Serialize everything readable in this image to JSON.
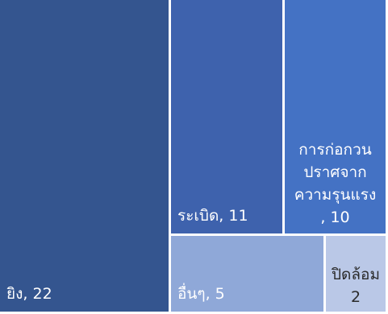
{
  "chart_data": {
    "type": "treemap",
    "title": "",
    "items": [
      {
        "name": "ยิง",
        "value": 22,
        "label_lines": [
          "ยิง, 22"
        ],
        "color": "#34558f"
      },
      {
        "name": "ระเบิด",
        "value": 11,
        "label_lines": [
          "ระเบิด, 11"
        ],
        "color": "#3e62ad"
      },
      {
        "name": "การก่อกวนปราศจากความรุนแรง",
        "value": 10,
        "label_lines": [
          "การก่อกวน",
          "ปราศจาก",
          "ความรุนแรง",
          ", 10"
        ],
        "color": "#4472c4"
      },
      {
        "name": "อื่นๆ",
        "value": 5,
        "label_lines": [
          "อื่นๆ, 5"
        ],
        "color": "#8fa8d8"
      },
      {
        "name": "ปิดล้อม",
        "value": 2,
        "label_lines": [
          "ปิดล้อม",
          "2"
        ],
        "color": "#bac8e7"
      }
    ]
  }
}
